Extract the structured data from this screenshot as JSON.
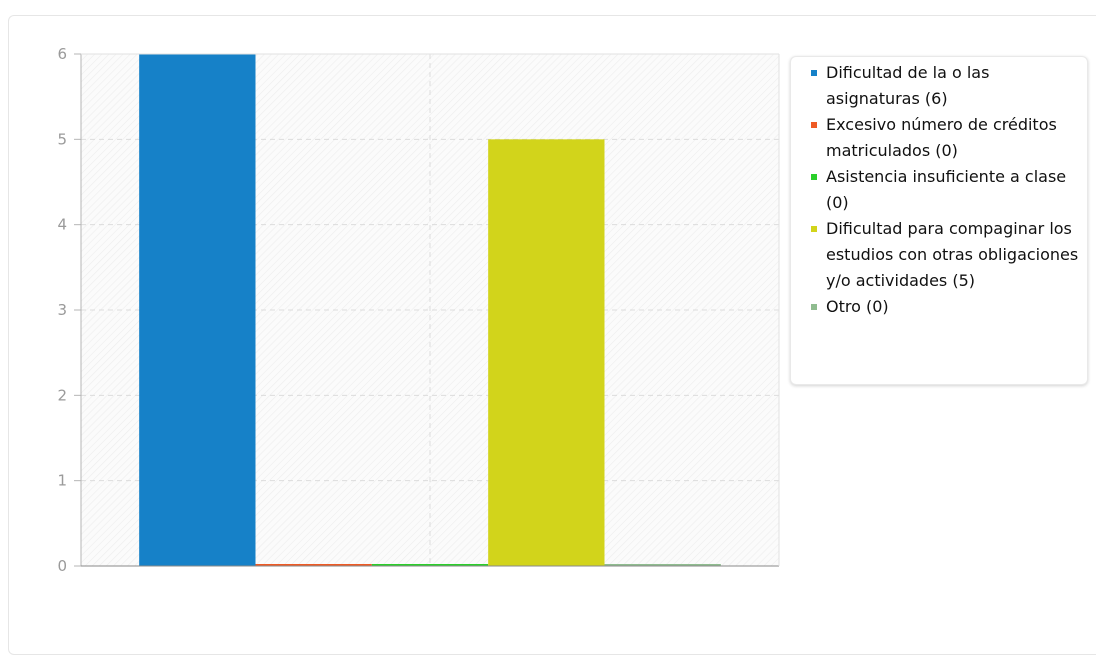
{
  "chart_data": {
    "type": "bar",
    "categories": [
      "Dificultad de la o las asignaturas",
      "Excesivo número de créditos matriculados",
      "Asistencia insuficiente a clase",
      "Dificultad para compaginar los estudios con otras obligaciones y/o actividades",
      "Otro"
    ],
    "values": [
      6,
      0,
      0,
      5,
      0
    ],
    "colors": [
      "#1681c8",
      "#ee5a24",
      "#2bcf2b",
      "#d2d41b",
      "#8fbc8f"
    ],
    "title": "",
    "xlabel": "",
    "ylabel": "",
    "ylim": [
      0,
      6
    ],
    "yticks": [
      "0",
      "1",
      "2",
      "3",
      "4",
      "5",
      "6"
    ],
    "grid": true,
    "legend_position": "top-right"
  },
  "legend": {
    "items": [
      {
        "label": "Dificultad de la o las asignaturas (6)",
        "color": "#1681c8"
      },
      {
        "label": "Excesivo número de créditos matriculados (0)",
        "color": "#ee5a24"
      },
      {
        "label": "Asistencia insuficiente a clase (0)",
        "color": "#2bcf2b"
      },
      {
        "label": "Dificultad para compaginar los estudios con otras obligaciones y/o actividades (5)",
        "color": "#d2d41b"
      },
      {
        "label": "Otro (0)",
        "color": "#8fbc8f"
      }
    ]
  }
}
